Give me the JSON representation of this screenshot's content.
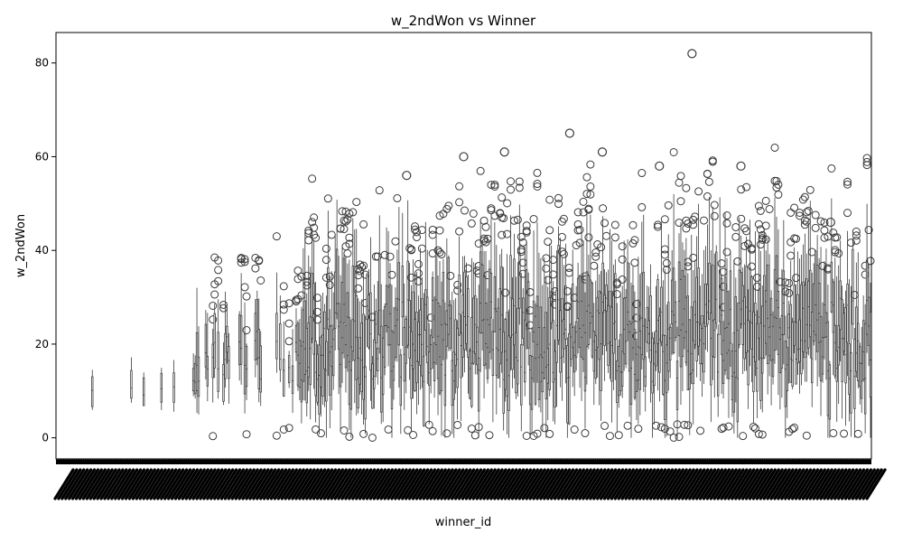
{
  "chart_data": {
    "type": "box",
    "title": "w_2ndWon vs Winner",
    "xlabel": "winner_id",
    "ylabel": "w_2ndWon",
    "ylim": [
      -4.5,
      86.5
    ],
    "yticks": [
      0,
      20,
      40,
      60,
      80
    ],
    "grid": false,
    "legend": "none",
    "box_color": "#3a3a3a",
    "category_count": 460,
    "notable_outliers": [
      {
        "winner_rank_position": 0.78,
        "value": 82
      },
      {
        "winner_rank_position": 0.63,
        "value": 65
      },
      {
        "winner_rank_position": 0.55,
        "value": 61
      },
      {
        "winner_rank_position": 0.67,
        "value": 61
      },
      {
        "winner_rank_position": 0.5,
        "value": 60
      },
      {
        "winner_rank_position": 0.84,
        "value": 58
      },
      {
        "winner_rank_position": 0.74,
        "value": 58
      },
      {
        "winner_rank_position": 0.43,
        "value": 56
      },
      {
        "winner_rank_position": 0.95,
        "value": 46
      }
    ],
    "value_range_summary": {
      "typical_median_range": [
        12,
        22
      ],
      "typical_upper_whisker": [
        35,
        45
      ],
      "min": 0,
      "max": 82
    }
  }
}
